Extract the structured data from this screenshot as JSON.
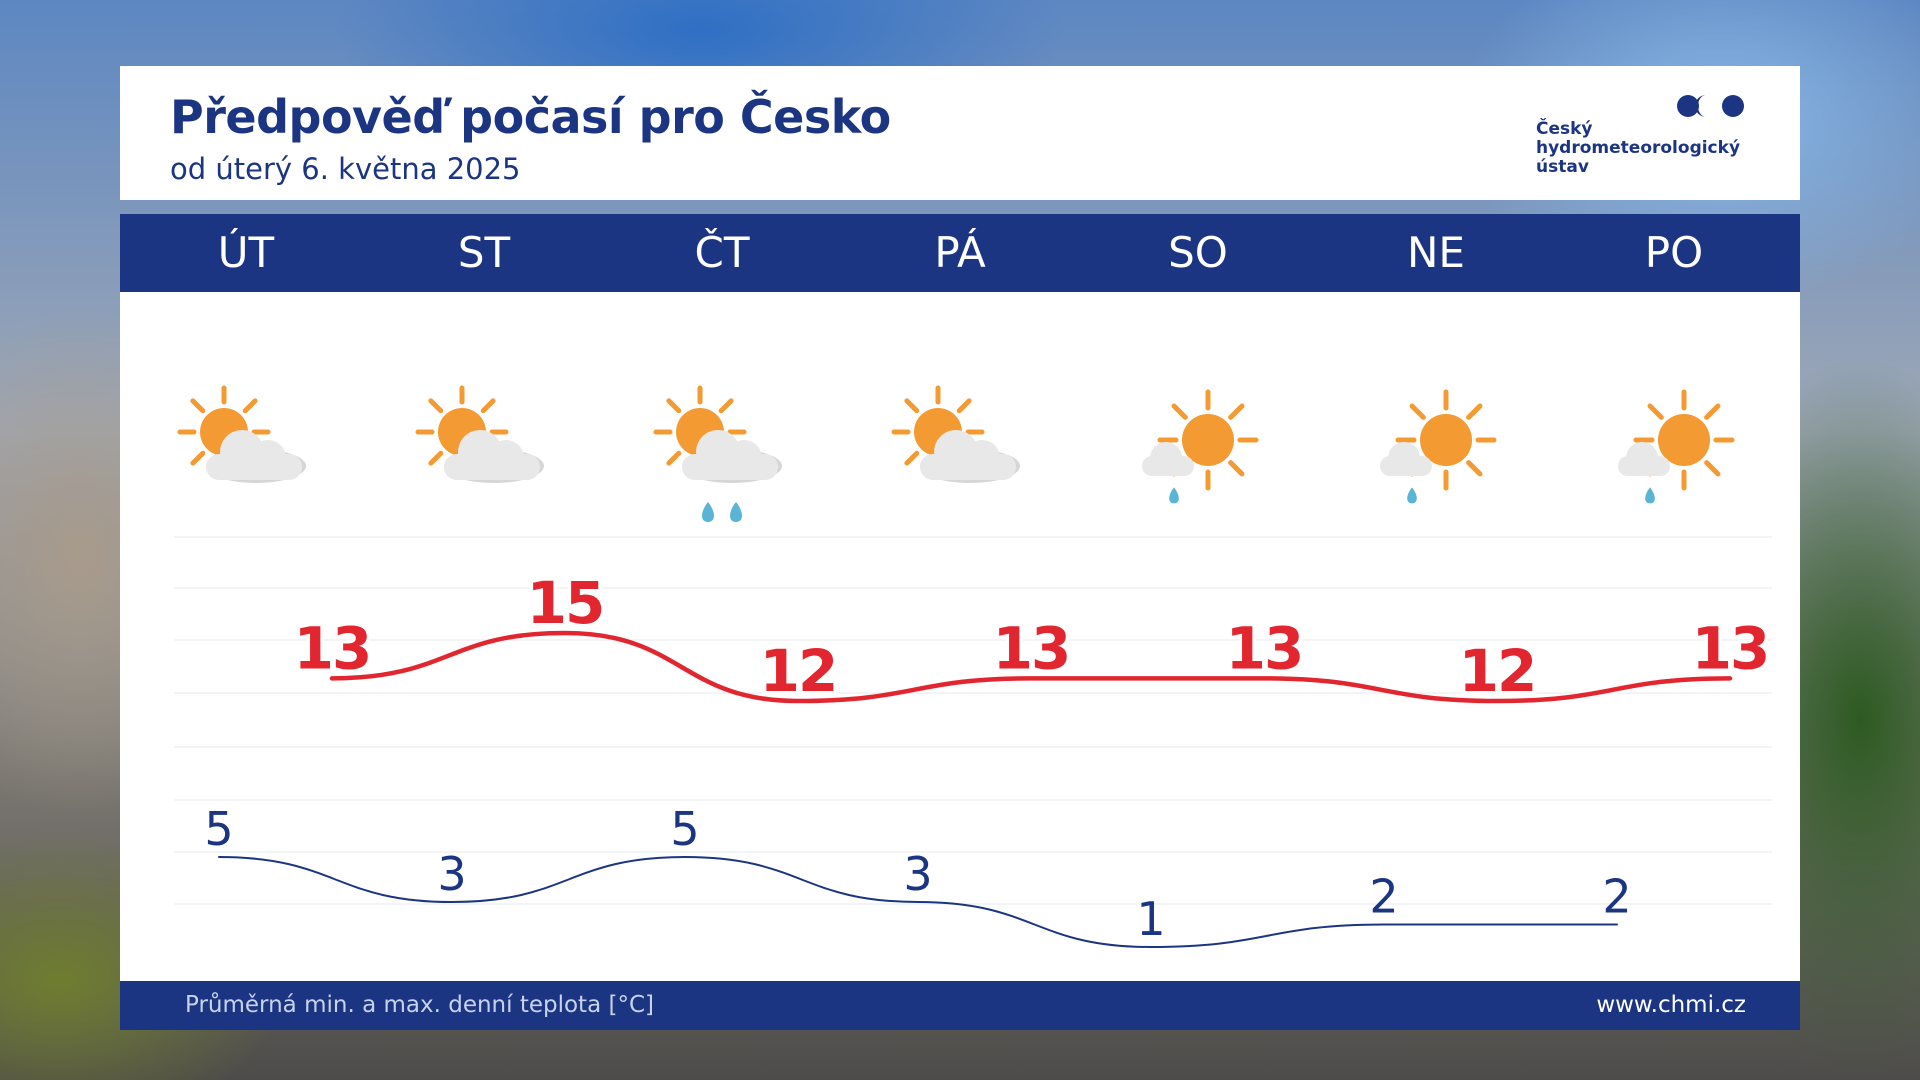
{
  "header": {
    "title": "Předpověď počasí pro Česko",
    "subtitle": "od úterý 6. května 2025"
  },
  "logo": {
    "lines": [
      "Český",
      "hydrometeorologický",
      "ústav"
    ]
  },
  "footer": {
    "caption": "Průměrná min. a max. denní teplota [°C]",
    "url": "www.chmi.cz"
  },
  "colors": {
    "navy": "#1b3582",
    "max_line": "#e2262f",
    "min_line": "#1b3582",
    "sun": "#f39a32",
    "cloud": "#e8e8e8",
    "rain": "#5ab4d6"
  },
  "days": [
    {
      "label": "ÚT",
      "icon": "sun-behind-cloud-icon"
    },
    {
      "label": "ST",
      "icon": "sun-behind-cloud-icon"
    },
    {
      "label": "ČT",
      "icon": "sun-cloud-rain-icon"
    },
    {
      "label": "PÁ",
      "icon": "sun-behind-cloud-icon"
    },
    {
      "label": "SO",
      "icon": "sun-shower-icon"
    },
    {
      "label": "NE",
      "icon": "sun-shower-icon"
    },
    {
      "label": "PO",
      "icon": "sun-shower-icon"
    }
  ],
  "chart_data": {
    "type": "line",
    "categories": [
      "ÚT",
      "ST",
      "ČT",
      "PÁ",
      "SO",
      "NE",
      "PO"
    ],
    "series": [
      {
        "values": [
          13,
          15,
          12,
          13,
          13,
          12,
          13
        ]
      },
      {
        "values": [
          5,
          3,
          5,
          3,
          1,
          2,
          2
        ]
      }
    ],
    "caption": "Průměrná min. a max. denní teplota [°C]"
  }
}
